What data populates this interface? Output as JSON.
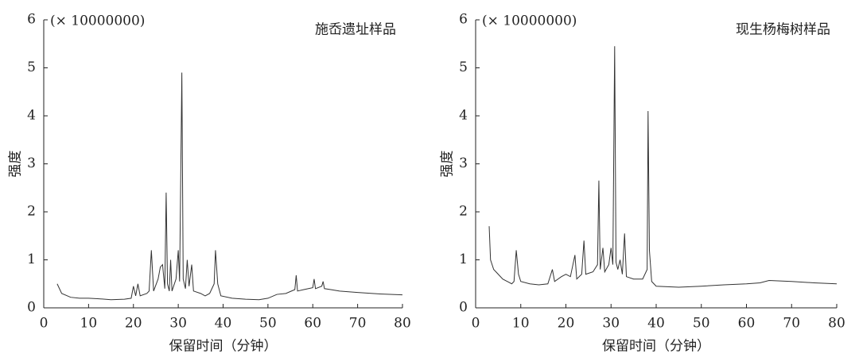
{
  "chart_data": [
    {
      "type": "line",
      "title": "施岙遗址样品",
      "annotation": "(× 10000000)",
      "ylabel": "强度",
      "xlabel": "保留时间（分钟）",
      "color": "#333333",
      "grid": false,
      "xlim": [
        0,
        80
      ],
      "ylim": [
        0,
        6
      ],
      "xticks": [
        0,
        10,
        20,
        30,
        40,
        50,
        60,
        70,
        80
      ],
      "yticks": [
        0,
        1,
        2,
        3,
        4,
        5,
        6
      ],
      "x": [
        3,
        4,
        6,
        8,
        10,
        12,
        15,
        18,
        19.5,
        20,
        20.5,
        21,
        21.5,
        23,
        23.5,
        24,
        24.5,
        25.5,
        26,
        26.5,
        27,
        27.3,
        27.6,
        28,
        28.3,
        28.6,
        29.5,
        30,
        30.3,
        30.8,
        31.1,
        31.6,
        32,
        32.4,
        33,
        33.4,
        35,
        36,
        37,
        38,
        38.3,
        38.8,
        39.5,
        42,
        45,
        48,
        50,
        52,
        54,
        56,
        56.3,
        56.6,
        58,
        60,
        60.3,
        60.6,
        62,
        62.3,
        62.6,
        64,
        66,
        70,
        75,
        80
      ],
      "values": [
        0.5,
        0.3,
        0.22,
        0.2,
        0.2,
        0.19,
        0.17,
        0.18,
        0.2,
        0.45,
        0.25,
        0.5,
        0.25,
        0.3,
        0.35,
        1.2,
        0.35,
        0.6,
        0.85,
        0.9,
        0.4,
        2.4,
        0.5,
        0.35,
        1.0,
        0.35,
        0.6,
        1.2,
        0.55,
        4.9,
        0.6,
        0.4,
        1.0,
        0.45,
        0.9,
        0.35,
        0.3,
        0.25,
        0.3,
        0.5,
        1.2,
        0.5,
        0.25,
        0.2,
        0.18,
        0.17,
        0.2,
        0.28,
        0.3,
        0.38,
        0.68,
        0.35,
        0.38,
        0.42,
        0.6,
        0.4,
        0.45,
        0.55,
        0.4,
        0.38,
        0.35,
        0.32,
        0.29,
        0.27
      ]
    },
    {
      "type": "line",
      "title": "现生杨梅树样品",
      "annotation": "(× 10000000)",
      "ylabel": "强度",
      "xlabel": "保留时间（分钟）",
      "color": "#333333",
      "grid": false,
      "xlim": [
        0,
        80
      ],
      "ylim": [
        0,
        6
      ],
      "xticks": [
        0,
        10,
        20,
        30,
        40,
        50,
        60,
        70,
        80
      ],
      "yticks": [
        0,
        1,
        2,
        3,
        4,
        5,
        6
      ],
      "x": [
        3,
        3.3,
        4,
        5,
        6,
        7,
        8,
        8.5,
        9,
        9.5,
        10,
        12,
        14,
        16,
        17,
        17.5,
        19,
        20,
        21,
        22,
        22.4,
        23.5,
        24,
        24.4,
        26,
        27,
        27.3,
        27.6,
        28.2,
        28.6,
        29.5,
        30,
        30.4,
        30.8,
        31.1,
        31.5,
        32,
        32.5,
        33,
        33.4,
        35,
        37,
        38,
        38.2,
        38.5,
        39,
        40,
        45,
        50,
        55,
        60,
        63,
        65,
        70,
        75,
        80
      ],
      "values": [
        1.7,
        1.0,
        0.8,
        0.7,
        0.6,
        0.55,
        0.5,
        0.55,
        1.2,
        0.7,
        0.55,
        0.5,
        0.48,
        0.5,
        0.8,
        0.55,
        0.65,
        0.7,
        0.65,
        1.1,
        0.6,
        0.7,
        1.4,
        0.7,
        0.75,
        0.9,
        2.65,
        0.8,
        1.25,
        0.75,
        0.9,
        1.25,
        0.9,
        5.45,
        0.95,
        0.8,
        1.0,
        0.7,
        1.55,
        0.65,
        0.6,
        0.6,
        0.8,
        4.1,
        1.2,
        0.55,
        0.45,
        0.43,
        0.45,
        0.48,
        0.5,
        0.52,
        0.57,
        0.55,
        0.52,
        0.5
      ]
    }
  ]
}
